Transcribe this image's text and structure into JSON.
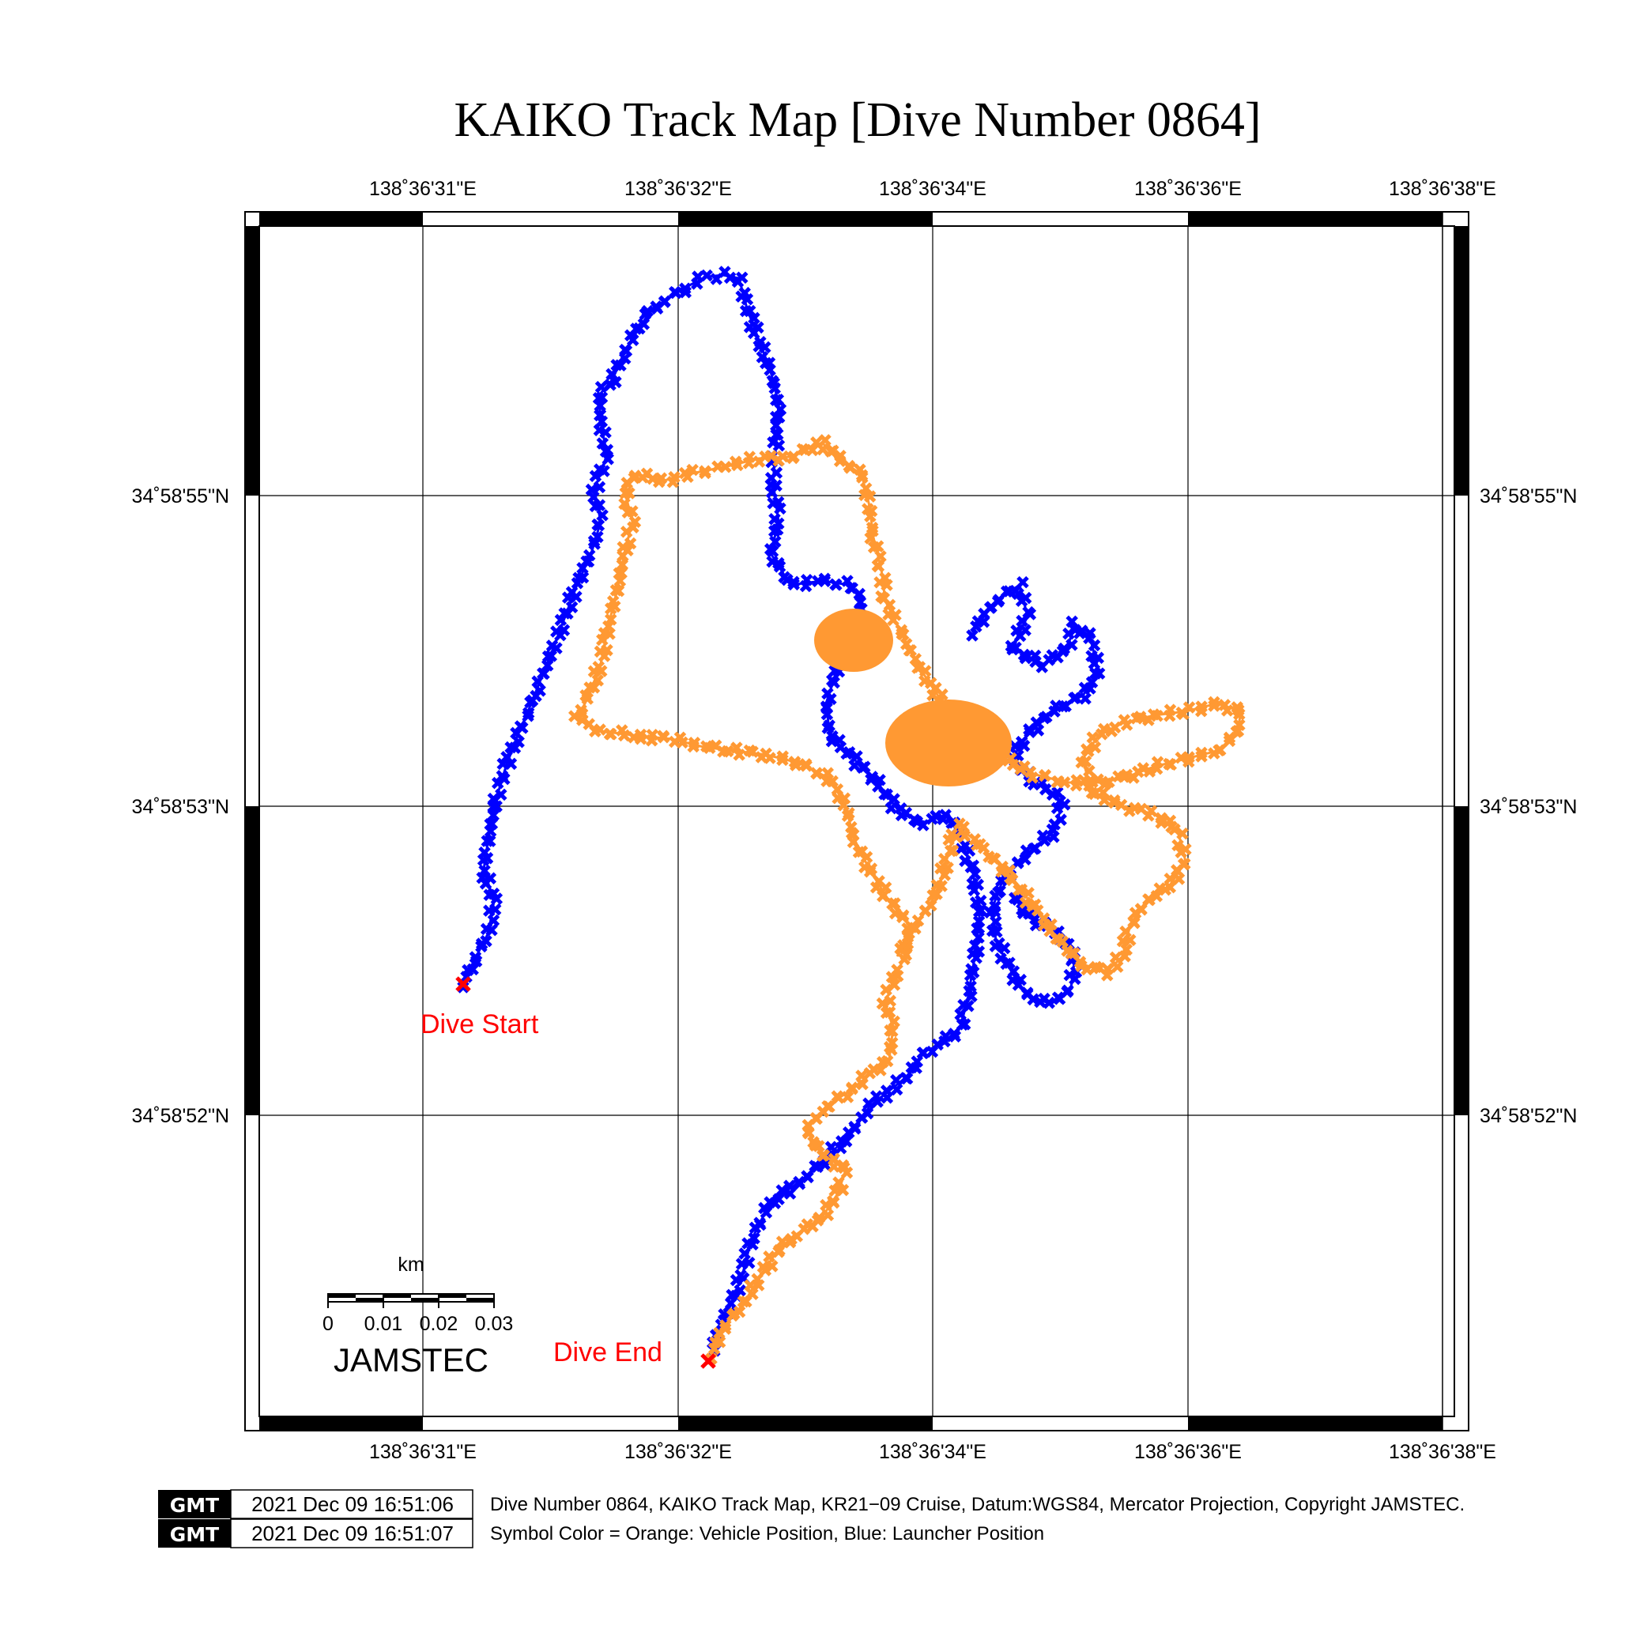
{
  "title": "KAIKO Track Map [Dive Number 0864]",
  "axes": {
    "lon_ticks": [
      "138˚36'31\"E",
      "138˚36'32\"E",
      "138˚36'34\"E",
      "138˚36'36\"E",
      "138˚36'38\"E"
    ],
    "lat_ticks": [
      "34˚58'55\"N",
      "34˚58'53\"N",
      "34˚58'52\"N"
    ]
  },
  "labels": {
    "dive_start": "Dive Start",
    "dive_end": "Dive End"
  },
  "scale_bar": {
    "unit": "km",
    "ticks": [
      "0",
      "0.01",
      "0.02",
      "0.03"
    ]
  },
  "logo_text": "JAMSTEC",
  "footer": {
    "gmt_label": "GMT",
    "timestamp_1": "2021 Dec 09 16:51:06",
    "timestamp_2": "2021 Dec 09 16:51:07",
    "line_1": "Dive Number 0864, KAIKO Track Map, KR21−09 Cruise, Datum:WGS84, Mercator Projection, Copyright JAMSTEC.",
    "line_2": "Symbol Color = Orange: Vehicle Position, Blue: Launcher Position"
  },
  "colors": {
    "vehicle": "#ff9933",
    "launcher": "#0000ff",
    "markers": "#ff0000"
  }
}
